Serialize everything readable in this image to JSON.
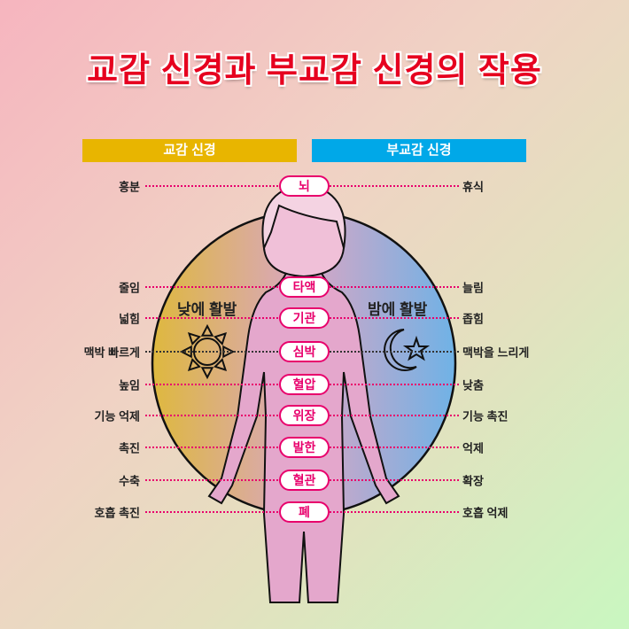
{
  "title": "교감 신경과 부교감 신경의 작용",
  "headers": {
    "sympathetic": "교감 신경",
    "parasympathetic": "부교감 신경"
  },
  "day_label": "낮에 활발",
  "night_label": "밤에 활발",
  "colors": {
    "title": "#e6001f",
    "sympathetic": "#e8b500",
    "parasympathetic": "#00a8e8",
    "organ": "#e8006c"
  },
  "rows": [
    {
      "organ": "뇌",
      "sympathetic": "흥분",
      "parasympathetic": "휴식"
    },
    {
      "organ": "타액",
      "sympathetic": "줄임",
      "parasympathetic": "늘림"
    },
    {
      "organ": "기관",
      "sympathetic": "넓힘",
      "parasympathetic": "좁힘"
    },
    {
      "organ": "심박",
      "sympathetic": "맥박 빠르게",
      "parasympathetic": "맥박을 느리게"
    },
    {
      "organ": "혈압",
      "sympathetic": "높임",
      "parasympathetic": "낮춤"
    },
    {
      "organ": "위장",
      "sympathetic": "기능 억제",
      "parasympathetic": "기능 촉진"
    },
    {
      "organ": "발한",
      "sympathetic": "촉진",
      "parasympathetic": "억제"
    },
    {
      "organ": "혈관",
      "sympathetic": "수축",
      "parasympathetic": "확장"
    },
    {
      "organ": "폐",
      "sympathetic": "호흡 촉진",
      "parasympathetic": "호흡 억제"
    }
  ]
}
